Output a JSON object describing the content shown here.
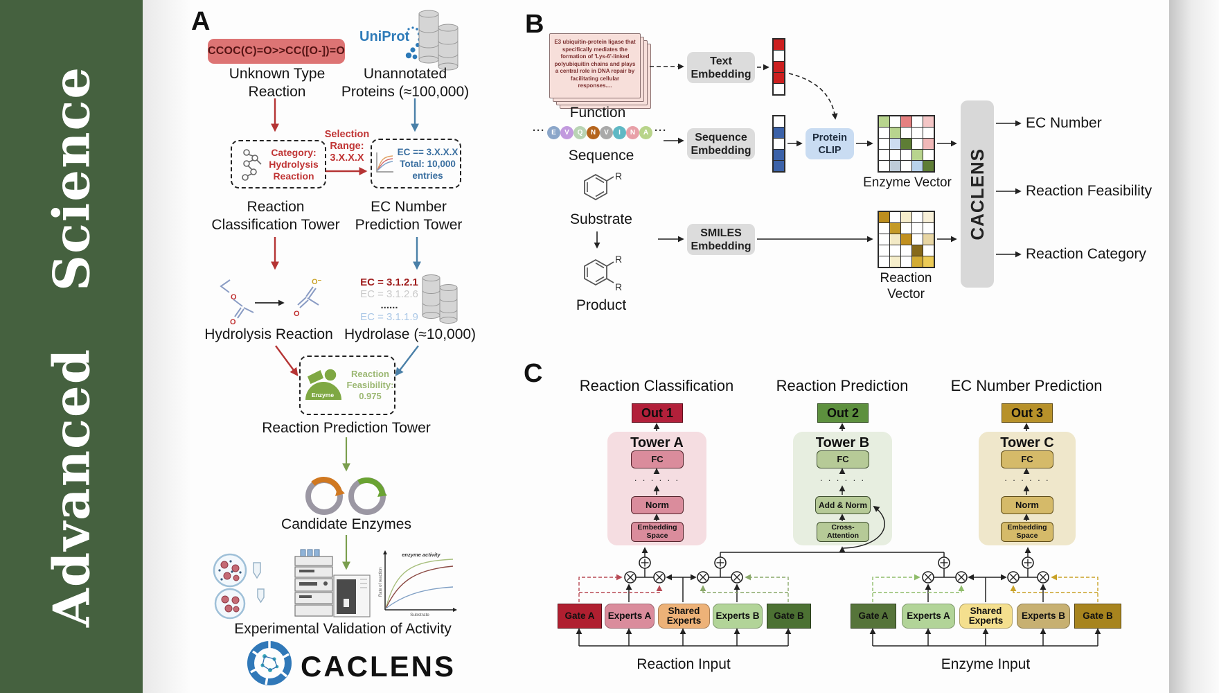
{
  "banner": {
    "journal": "Advanced Science"
  },
  "colors": {
    "banner_green": "#45613f",
    "caclens_blue": "#2f6fb0",
    "red_accent": "#b53434",
    "blue_accent": "#4a80a8",
    "green_accent": "#7a9e4e",
    "out1": "#b2203a",
    "out2": "#5d903e",
    "out3": "#b7912a",
    "tower_a_bg": "#f5dde1",
    "tower_b_bg": "#e7eee0",
    "tower_c_bg": "#efe7cb",
    "tower_a_box": "#da8c9c",
    "tower_b_box": "#b6ca97",
    "tower_c_box": "#d5ba69",
    "gate_a1": "#b01f30",
    "experts_a1": "#da8c9c",
    "shared1": "#edb278",
    "experts_b1": "#b2d498",
    "gate_b1": "#4c7133",
    "gate_a2": "#56743a",
    "experts_a2": "#b2d498",
    "shared2": "#f4df8e",
    "experts_b2": "#c7b071",
    "gate_b2": "#a7841e"
  },
  "panel_a": {
    "label": "A",
    "smiles": "CCOC(C)=O>>CC([O-])=O",
    "unknown_reaction": "Unknown Type Reaction",
    "uniprot": "UniProt",
    "unannotated": "Unannotated Proteins (≈100,000)",
    "selection_l1": "Selection",
    "selection_l2": "Range:",
    "selection_l3": "3.X.X.X",
    "category_l1": "Category:",
    "category_l2": "Hydrolysis",
    "category_l3": "Reaction",
    "classification_tower": "Reaction Classification Tower",
    "ec_l1": "EC == 3.X.X.X",
    "ec_l2": "Total: 10,000",
    "ec_l3": "entries",
    "ec_tower": "EC Number Prediction Tower",
    "hydrolysis": "Hydrolysis Reaction",
    "ec_list": [
      {
        "text": "EC = 3.1.2.1",
        "color": "#9e1b1b",
        "bold": true
      },
      {
        "text": "EC = 3.1.2.6",
        "color": "#c9c9c9",
        "bold": false
      },
      {
        "text": "......",
        "color": "#333333",
        "bold": true
      },
      {
        "text": "EC = 3.1.1.9",
        "color": "#aac7e6",
        "bold": false
      }
    ],
    "hydrolase": "Hydrolase (≈10,000)",
    "enzyme_badge": "Enzyme",
    "feasibility_l1": "Reaction",
    "feasibility_l2": "Feasibility:",
    "feasibility_l3": "0.975",
    "prediction_tower": "Reaction Prediction Tower",
    "candidate": "Candidate Enzymes",
    "activity_plot": {
      "annotation": "enzyme activity",
      "ylabel": "Rate of reaction",
      "xlabel": "Substrate"
    },
    "validation": "Experimental Validation of Activity",
    "brand": "CACLENS"
  },
  "panel_b": {
    "label": "B",
    "function_card": "E3 ubiquitin-protein ligase that specifically mediates the formation of 'Lys-6'-linked polyubiquitin chains and plays a central role in DNA repair by facilitating cellular responses....",
    "function_label": "Function",
    "dots": "···",
    "sequence": [
      {
        "letter": "E",
        "color": "#8ba6c9"
      },
      {
        "letter": "V",
        "color": "#c29ade"
      },
      {
        "letter": "Q",
        "color": "#b9d4b4"
      },
      {
        "letter": "N",
        "color": "#b5651d"
      },
      {
        "letter": "V",
        "color": "#a9a9a9"
      },
      {
        "letter": "I",
        "color": "#5fb8c4"
      },
      {
        "letter": "N",
        "color": "#e8a0a8"
      },
      {
        "letter": "A",
        "color": "#b8d48a"
      }
    ],
    "sequence_label": "Sequence",
    "substrate_label": "Substrate",
    "product_label": "Product",
    "r_label": "R",
    "text_embedding": "Text Embedding",
    "sequence_embedding": "Sequence Embedding",
    "smiles_embedding": "SMILES Embedding",
    "protein_clip": "Protein CLIP",
    "text_vector": [
      "#cc1f1f",
      "#ffffff",
      "#cc1f1f",
      "#cc1f1f",
      "#ffffff"
    ],
    "seq_vector": [
      "#ffffff",
      "#3c62a8",
      "#ffffff",
      "#3c62a8",
      "#3c62a8"
    ],
    "enzyme_vector": [
      "#b8d48e",
      "#ffffff",
      "#e58080",
      "#ffffff",
      "#f4c6c6",
      "#ffffff",
      "#b8d48e",
      "#ffffff",
      "#ffffff",
      "#ffffff",
      "#ffffff",
      "#ccdcf0",
      "#5e7d35",
      "#ffffff",
      "#f0b8b8",
      "#ffffff",
      "#ffffff",
      "#ffffff",
      "#b8d48e",
      "#ffffff",
      "#ffffff",
      "#becbd8",
      "#ffffff",
      "#b8d2ec",
      "#5e7d35"
    ],
    "reaction_vector": [
      "#bd8e1e",
      "#ffffff",
      "#f6edcb",
      "#ffffff",
      "#f8f0d8",
      "#ffffff",
      "#c49a28",
      "#ffffff",
      "#ffffff",
      "#ffffff",
      "#ffffff",
      "#f3eac6",
      "#c1901f",
      "#ffffff",
      "#e8d6a4",
      "#ffffff",
      "#ffffff",
      "#ffffff",
      "#86691a",
      "#ffffff",
      "#ffffff",
      "#f6eecb",
      "#ffffff",
      "#d2ab33",
      "#eccb57"
    ],
    "enzyme_vector_label": "Enzyme Vector",
    "reaction_vector_label": "Reaction Vector",
    "caclens": "CACLENS",
    "outputs": [
      "EC Number",
      "Reaction Feasibility",
      "Reaction Category"
    ]
  },
  "panel_c": {
    "label": "C",
    "col1": {
      "title": "Reaction Classification",
      "out": "Out 1",
      "tower": "Tower A",
      "fc": "FC",
      "dots": "· · · · · ·",
      "mid": "Norm",
      "bottom": "Embedding Space"
    },
    "col2": {
      "title": "Reaction Prediction",
      "out": "Out 2",
      "tower": "Tower B",
      "fc": "FC",
      "dots": "· · · · · ·",
      "mid": "Add & Norm",
      "bottom": "Cross-Attention"
    },
    "col3": {
      "title": "EC Number Prediction",
      "out": "Out 3",
      "tower": "Tower C",
      "fc": "FC",
      "dots": "· · · · · ·",
      "mid": "Norm",
      "bottom": "Embedding Space"
    },
    "group1": {
      "gate_a": "Gate A",
      "experts_a": "Experts A",
      "shared": "Shared Experts",
      "experts_b": "Experts B",
      "gate_b": "Gate B",
      "input": "Reaction Input"
    },
    "group2": {
      "gate_a": "Gate A",
      "experts_a": "Experts A",
      "shared": "Shared Experts",
      "experts_b": "Experts B",
      "gate_b": "Gate B",
      "input": "Enzyme Input"
    }
  }
}
